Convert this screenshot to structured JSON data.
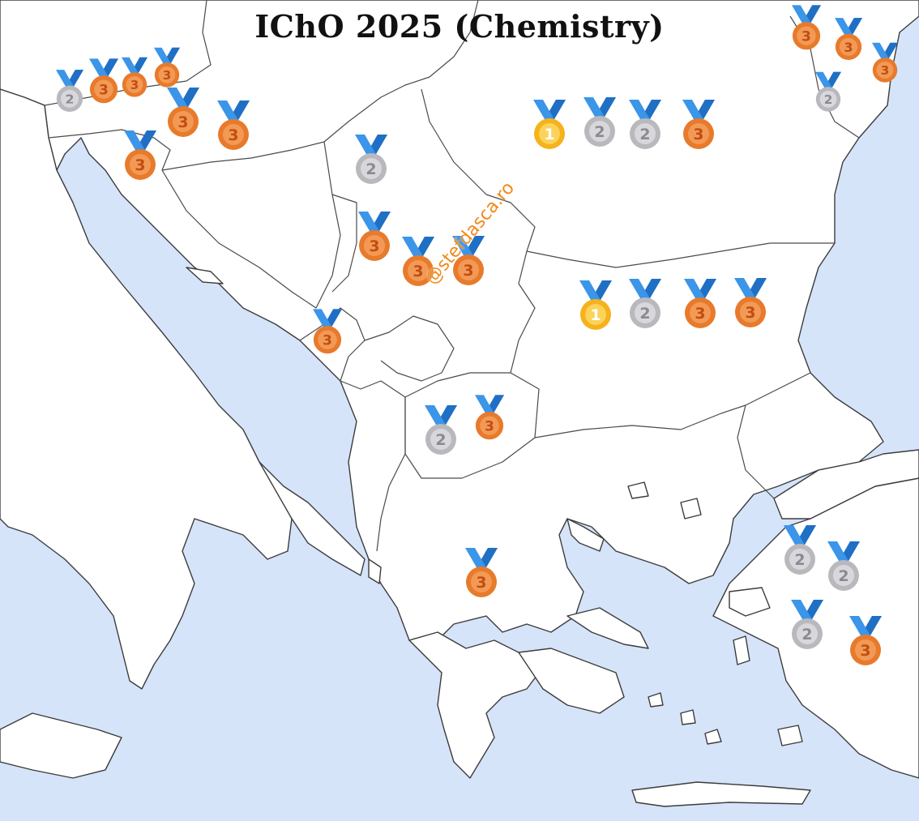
{
  "title": "IChO 2025 (Chemistry)",
  "watermark": "@stefdasca.ro",
  "colors": {
    "sea": "#d6e4fa",
    "land": "#ffffff",
    "gold": "#f6b21b",
    "silver": "#b9b9bd",
    "bronze": "#e87a2c",
    "ribbon": "#3b95e8"
  },
  "medal_icon": "sports-medal-icon",
  "medals": [
    {
      "rank": 2,
      "label": "2"
    },
    {
      "rank": 3,
      "label": "3"
    },
    {
      "rank": 3,
      "label": "3"
    },
    {
      "rank": 3,
      "label": "3"
    },
    {
      "rank": 3,
      "label": "3"
    },
    {
      "rank": 3,
      "label": "3"
    },
    {
      "rank": 3,
      "label": "3"
    },
    {
      "rank": 2,
      "label": "2"
    },
    {
      "rank": 3,
      "label": "3"
    },
    {
      "rank": 3,
      "label": "3"
    },
    {
      "rank": 3,
      "label": "3"
    },
    {
      "rank": 3,
      "label": "3"
    },
    {
      "rank": 1,
      "label": "1"
    },
    {
      "rank": 2,
      "label": "2"
    },
    {
      "rank": 2,
      "label": "2"
    },
    {
      "rank": 3,
      "label": "3"
    },
    {
      "rank": 3,
      "label": "3"
    },
    {
      "rank": 3,
      "label": "3"
    },
    {
      "rank": 3,
      "label": "3"
    },
    {
      "rank": 2,
      "label": "2"
    },
    {
      "rank": 1,
      "label": "1"
    },
    {
      "rank": 2,
      "label": "2"
    },
    {
      "rank": 3,
      "label": "3"
    },
    {
      "rank": 3,
      "label": "3"
    },
    {
      "rank": 2,
      "label": "2"
    },
    {
      "rank": 3,
      "label": "3"
    },
    {
      "rank": 3,
      "label": "3"
    },
    {
      "rank": 2,
      "label": "2"
    },
    {
      "rank": 2,
      "label": "2"
    },
    {
      "rank": 2,
      "label": "2"
    },
    {
      "rank": 3,
      "label": "3"
    }
  ]
}
